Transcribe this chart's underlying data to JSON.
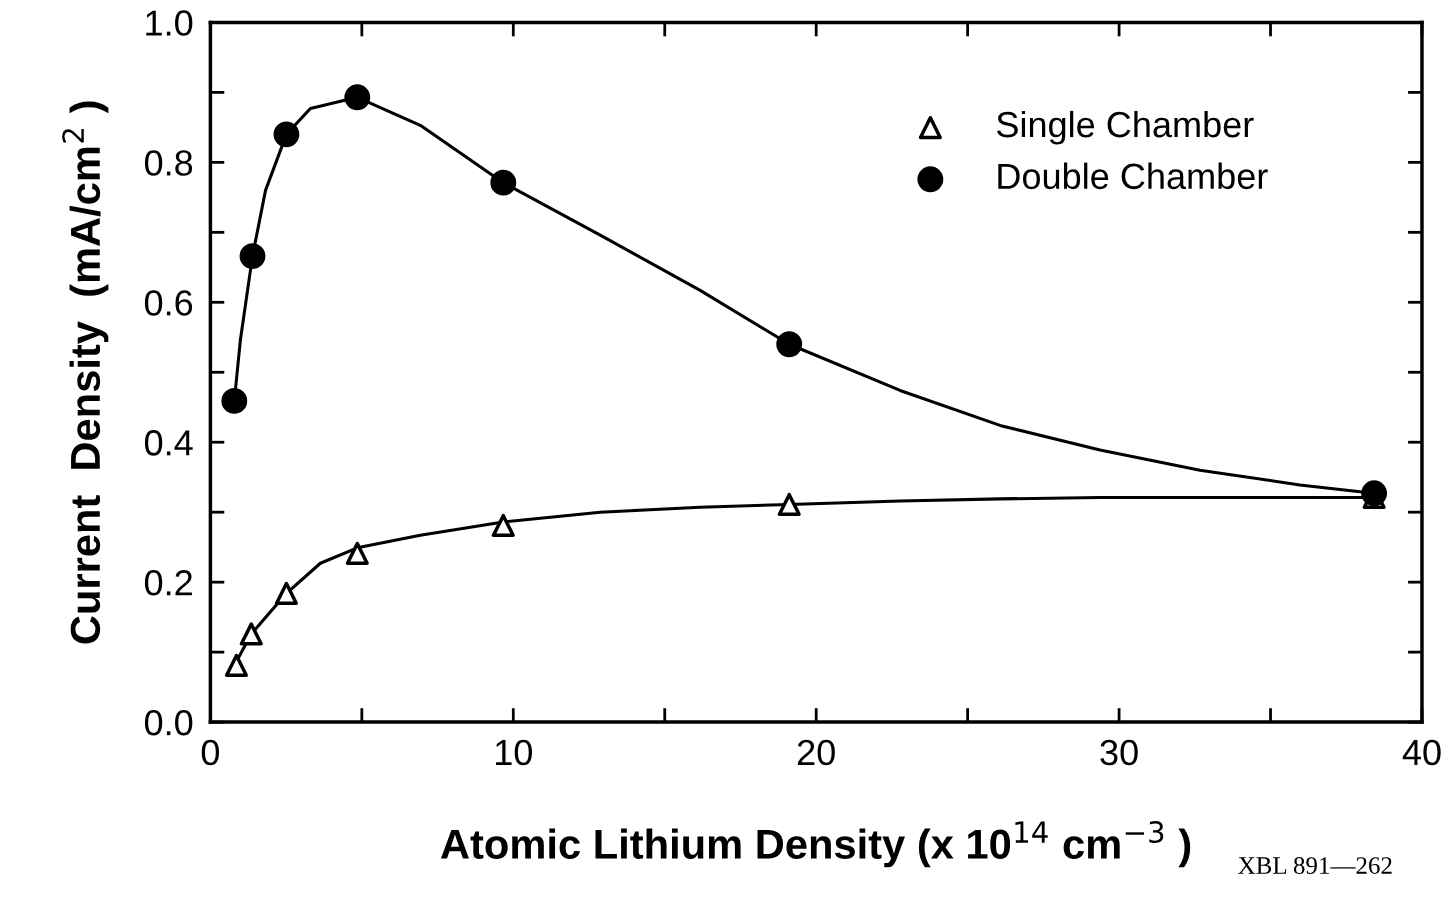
{
  "chart_data": {
    "type": "scatter",
    "xlabel": "Atomic Lithium Density (x 10$^{14}$ cm$^{−3}$ )",
    "ylabel": "Current  Density  (mA/cm$^{2}$ )",
    "xlim": [
      0,
      40
    ],
    "ylim": [
      0,
      1.0
    ],
    "xticks": [
      0,
      {
        "value": 5,
        "label": null
      },
      10,
      {
        "value": 15,
        "label": null
      },
      20,
      {
        "value": 25,
        "label": null
      },
      30,
      {
        "value": 35,
        "label": null
      },
      40
    ],
    "yticks": [
      {
        "value": 0,
        "label": "0.0"
      },
      {
        "value": 0.1,
        "label": null
      },
      0.2,
      {
        "value": 0.3,
        "label": null
      },
      0.4,
      {
        "value": 0.5,
        "label": null
      },
      0.6,
      {
        "value": 0.7,
        "label": null
      },
      0.8,
      {
        "value": 0.9,
        "label": null
      },
      {
        "value": 1.0,
        "label": "1.0"
      }
    ],
    "grid": false,
    "legend": "top right",
    "annotations": [
      "XBL 891—262"
    ],
    "series": [
      {
        "name": "Single Chamber",
        "marker": "triangle",
        "color": "#000000",
        "x": [
          0.86,
          1.35,
          2.51,
          4.85,
          9.67,
          19.11,
          38.42
        ],
        "values": [
          0.081,
          0.126,
          0.184,
          0.241,
          0.281,
          0.311,
          0.321
        ]
      },
      {
        "name": "Double Chamber",
        "marker": "circle",
        "color": "#000000",
        "x": [
          0.79,
          1.39,
          2.51,
          4.85,
          9.67,
          19.11,
          38.42
        ],
        "values": [
          0.459,
          0.666,
          0.84,
          0.893,
          0.771,
          0.54,
          0.327
        ]
      },
      {
        "type": "line",
        "marker": "none",
        "color": "#000000",
        "x": [
          0.79,
          1.35,
          2.51,
          3.63,
          4.85,
          6.93,
          9.67,
          12.87,
          16.17,
          19.11,
          22.77,
          26.07,
          29.37,
          38.42
        ],
        "values": [
          0.081,
          0.126,
          0.184,
          0.227,
          0.249,
          0.267,
          0.286,
          0.3,
          0.307,
          0.311,
          0.316,
          0.319,
          0.321,
          0.321
        ]
      },
      {
        "type": "line",
        "marker": "none",
        "color": "#000000",
        "x": [
          0.79,
          0.99,
          1.39,
          1.82,
          2.51,
          3.3,
          4.85,
          6.93,
          9.67,
          12.87,
          16.17,
          19.11,
          22.77,
          26.07,
          29.37,
          32.67,
          35.97,
          38.42
        ],
        "values": [
          0.459,
          0.546,
          0.666,
          0.76,
          0.84,
          0.877,
          0.893,
          0.853,
          0.771,
          0.696,
          0.617,
          0.54,
          0.474,
          0.424,
          0.389,
          0.36,
          0.339,
          0.327
        ]
      }
    ]
  }
}
